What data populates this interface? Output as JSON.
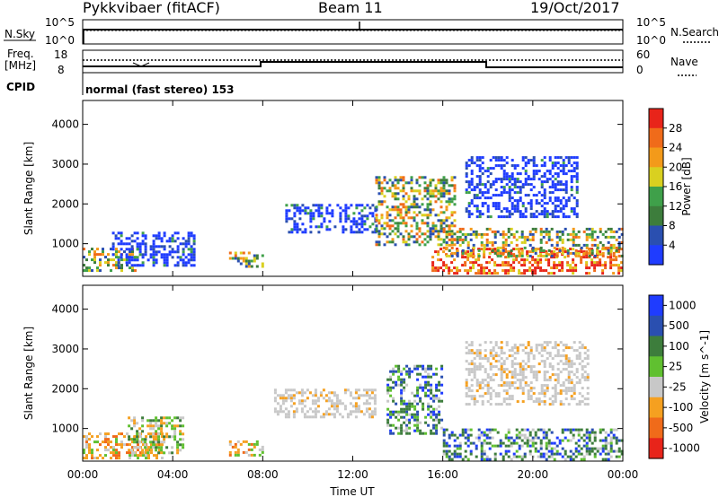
{
  "header": {
    "station": "Pykkvibaer (fitACF)",
    "beam": "Beam 11",
    "date": "19/Oct/2017"
  },
  "sky_panel": {
    "left_label": "N.Sky",
    "right_label": "N.Search",
    "top_tick": "10^5",
    "bottom_tick": "10^0",
    "right_top_tick": "10^5",
    "right_bottom_tick": "10^0"
  },
  "freq_panel": {
    "left_label_line1": "Freq.",
    "left_label_line2": "[MHz]",
    "left_top_tick": "18",
    "left_bottom_tick": "8",
    "right_label": "Nave",
    "right_top_tick": "60",
    "right_bottom_tick": "0"
  },
  "cpid": {
    "label": "CPID",
    "value": "normal (fast stereo) 153"
  },
  "chart_data": [
    {
      "type": "heatmap",
      "name": "power",
      "ylabel": "Slant Range [km]",
      "xlabel": "",
      "ylim": [
        180,
        4600
      ],
      "yticks": [
        "1000",
        "2000",
        "3000",
        "4000"
      ],
      "colorbar_label": "Power [dB]",
      "colorbar_ticks": [
        "4",
        "8",
        "12",
        "16",
        "20",
        "24",
        "28"
      ],
      "colorbar_colors": [
        "#1f3cff",
        "#2a4fb0",
        "#3d7d3c",
        "#3fa04a",
        "#d9d020",
        "#f39a1a",
        "#f06b1a",
        "#e8241a"
      ],
      "regions": [
        {
          "t0": 0.0,
          "t1": 2.5,
          "r0": 300,
          "r1": 900,
          "level": "mid"
        },
        {
          "t0": 1.3,
          "t1": 5.0,
          "r0": 450,
          "r1": 1300,
          "level": "low"
        },
        {
          "t0": 6.5,
          "t1": 8.0,
          "r0": 400,
          "r1": 800,
          "level": "mid"
        },
        {
          "t0": 9.0,
          "t1": 13.0,
          "r0": 1300,
          "r1": 2000,
          "level": "low"
        },
        {
          "t0": 13.0,
          "t1": 16.5,
          "r0": 1000,
          "r1": 2700,
          "level": "mid"
        },
        {
          "t0": 15.5,
          "t1": 24.0,
          "r0": 250,
          "r1": 900,
          "level": "high"
        },
        {
          "t0": 16.0,
          "t1": 24.0,
          "r0": 700,
          "r1": 1400,
          "level": "mid"
        },
        {
          "t0": 17.0,
          "t1": 22.0,
          "r0": 1700,
          "r1": 3200,
          "level": "low"
        }
      ]
    },
    {
      "type": "heatmap",
      "name": "velocity",
      "ylabel": "Slant Range [km]",
      "xlabel": "Time UT",
      "ylim": [
        180,
        4600
      ],
      "yticks": [
        "1000",
        "2000",
        "3000",
        "4000"
      ],
      "xticks": [
        "00:00",
        "04:00",
        "08:00",
        "12:00",
        "16:00",
        "20:00",
        "00:00"
      ],
      "colorbar_label": "Velocity [m s^-1]",
      "colorbar_ticks": [
        "1000",
        "500",
        "100",
        "25",
        "-25",
        "-100",
        "-500",
        "-1000"
      ],
      "colorbar_colors": [
        "#1f3cff",
        "#2a4fb0",
        "#3d7d3c",
        "#60c030",
        "#c8c8c8",
        "#f5a020",
        "#f06b1a",
        "#e8241a"
      ],
      "regions": [
        {
          "t0": 0.0,
          "t1": 3.5,
          "r0": 250,
          "r1": 900,
          "level": "neg"
        },
        {
          "t0": 2.0,
          "t1": 4.5,
          "r0": 400,
          "r1": 1300,
          "level": "mix"
        },
        {
          "t0": 6.5,
          "t1": 8.0,
          "r0": 300,
          "r1": 700,
          "level": "neg"
        },
        {
          "t0": 8.5,
          "t1": 13.0,
          "r0": 1300,
          "r1": 2000,
          "level": "zero"
        },
        {
          "t0": 13.5,
          "t1": 16.0,
          "r0": 900,
          "r1": 2600,
          "level": "pos"
        },
        {
          "t0": 16.0,
          "t1": 24.0,
          "r0": 250,
          "r1": 1000,
          "level": "pos"
        },
        {
          "t0": 17.0,
          "t1": 22.5,
          "r0": 1600,
          "r1": 3200,
          "level": "zero"
        }
      ]
    }
  ]
}
